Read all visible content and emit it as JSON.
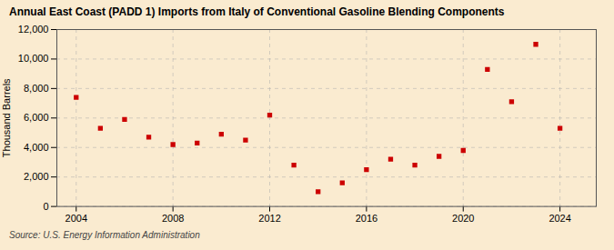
{
  "chart_data": {
    "type": "scatter",
    "title": "Annual East Coast (PADD 1) Imports from Italy of Conventional Gasoline Blending Components",
    "ylabel": "Thousand Barrels",
    "source": "Source: U.S. Energy Information Administration",
    "x": [
      2004,
      2005,
      2006,
      2007,
      2008,
      2009,
      2010,
      2011,
      2012,
      2013,
      2014,
      2015,
      2016,
      2017,
      2018,
      2019,
      2020,
      2021,
      2022,
      2023,
      2024
    ],
    "values": [
      7400,
      5300,
      5900,
      4700,
      4200,
      4300,
      4900,
      4500,
      6200,
      2800,
      1000,
      1600,
      2500,
      3200,
      2800,
      3400,
      3800,
      9300,
      7100,
      11000,
      5300
    ],
    "color": "#cc0000",
    "marker": "square",
    "xlim": [
      2003.2,
      2025.5
    ],
    "xticks": [
      2004,
      2008,
      2012,
      2016,
      2020,
      2024
    ],
    "ylim": [
      0,
      12000
    ],
    "yticks": [
      0,
      {
        "value": 2000,
        "label": "2,000"
      },
      {
        "value": 4000,
        "label": "4,000"
      },
      {
        "value": 6000,
        "label": "6,000"
      },
      {
        "value": 8000,
        "label": "8,000"
      },
      {
        "value": 10000,
        "label": "10,000"
      },
      {
        "value": 12000,
        "label": "12,000"
      }
    ],
    "grid": true
  }
}
